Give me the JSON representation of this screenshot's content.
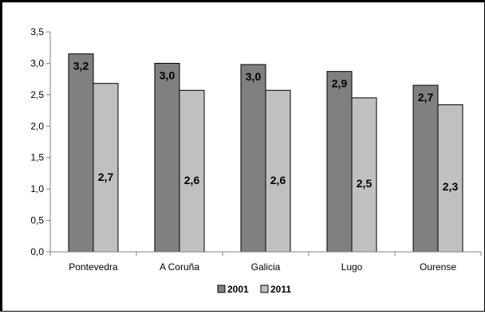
{
  "chart_data": {
    "type": "bar",
    "categories": [
      "Pontevedra",
      "A Coruña",
      "Galicia",
      "Lugo",
      "Ourense"
    ],
    "series": [
      {
        "name": "2001",
        "values": [
          3.15,
          3.0,
          2.98,
          2.87,
          2.65
        ],
        "labels": [
          "3,2",
          "3,0",
          "3,0",
          "2,9",
          "2,7"
        ],
        "color": "#808080"
      },
      {
        "name": "2011",
        "values": [
          2.68,
          2.57,
          2.57,
          2.45,
          2.34
        ],
        "labels": [
          "2,7",
          "2,6",
          "2,6",
          "2,5",
          "2,3"
        ],
        "color": "#c0c0c0"
      }
    ],
    "y_ticks": [
      "0,0",
      "0,5",
      "1,0",
      "1,5",
      "2,0",
      "2,5",
      "3,0",
      "3,5"
    ],
    "ylim": [
      0,
      3.5
    ],
    "grid": false,
    "legend": "bottom"
  }
}
